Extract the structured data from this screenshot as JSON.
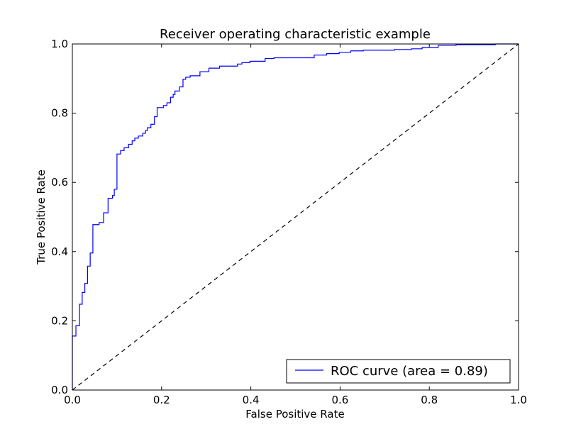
{
  "chart_data": {
    "type": "line",
    "title": "Receiver operating characteristic example",
    "xlabel": "False Positive Rate",
    "ylabel": "True Positive Rate",
    "xlim": [
      0.0,
      1.0
    ],
    "ylim": [
      0.0,
      1.0
    ],
    "xticks": [
      "0.0",
      "0.2",
      "0.4",
      "0.6",
      "0.8",
      "1.0"
    ],
    "yticks": [
      "0.0",
      "0.2",
      "0.4",
      "0.6",
      "0.8",
      "1.0"
    ],
    "grid": false,
    "legend_position": "lower-right",
    "series": [
      {
        "name": "ROC curve (area = 0.89)",
        "color": "#0000ff",
        "style": "solid",
        "step": true,
        "x": [
          0.0,
          0.0,
          0.008,
          0.008,
          0.016,
          0.016,
          0.022,
          0.022,
          0.028,
          0.028,
          0.034,
          0.034,
          0.04,
          0.04,
          0.046,
          0.046,
          0.06,
          0.06,
          0.07,
          0.07,
          0.08,
          0.08,
          0.09,
          0.09,
          0.094,
          0.094,
          0.1,
          0.1,
          0.108,
          0.108,
          0.116,
          0.116,
          0.126,
          0.126,
          0.134,
          0.134,
          0.14,
          0.14,
          0.148,
          0.148,
          0.158,
          0.158,
          0.164,
          0.164,
          0.168,
          0.168,
          0.176,
          0.176,
          0.184,
          0.184,
          0.19,
          0.19,
          0.204,
          0.204,
          0.212,
          0.212,
          0.22,
          0.22,
          0.226,
          0.226,
          0.23,
          0.23,
          0.24,
          0.24,
          0.248,
          0.248,
          0.254,
          0.254,
          0.264,
          0.264,
          0.286,
          0.286,
          0.306,
          0.306,
          0.33,
          0.33,
          0.37,
          0.37,
          0.38,
          0.38,
          0.398,
          0.398,
          0.432,
          0.432,
          0.452,
          0.452,
          0.542,
          0.542,
          0.57,
          0.57,
          0.598,
          0.598,
          0.624,
          0.624,
          0.652,
          0.652,
          0.722,
          0.722,
          0.76,
          0.76,
          0.784,
          0.784,
          0.82,
          0.82,
          0.86,
          0.86,
          0.948,
          0.948,
          1.0
        ],
        "y": [
          0.0,
          0.156,
          0.156,
          0.186,
          0.186,
          0.248,
          0.248,
          0.282,
          0.282,
          0.308,
          0.308,
          0.358,
          0.358,
          0.396,
          0.396,
          0.478,
          0.478,
          0.484,
          0.484,
          0.512,
          0.512,
          0.554,
          0.554,
          0.562,
          0.562,
          0.58,
          0.58,
          0.682,
          0.682,
          0.692,
          0.692,
          0.7,
          0.7,
          0.71,
          0.71,
          0.72,
          0.72,
          0.728,
          0.728,
          0.734,
          0.734,
          0.742,
          0.742,
          0.75,
          0.75,
          0.758,
          0.758,
          0.768,
          0.768,
          0.79,
          0.79,
          0.816,
          0.816,
          0.822,
          0.822,
          0.83,
          0.83,
          0.846,
          0.846,
          0.854,
          0.854,
          0.864,
          0.864,
          0.876,
          0.876,
          0.898,
          0.898,
          0.904,
          0.904,
          0.908,
          0.908,
          0.92,
          0.92,
          0.93,
          0.93,
          0.936,
          0.936,
          0.942,
          0.942,
          0.946,
          0.946,
          0.95,
          0.95,
          0.958,
          0.958,
          0.96,
          0.96,
          0.968,
          0.968,
          0.972,
          0.972,
          0.976,
          0.976,
          0.98,
          0.98,
          0.982,
          0.982,
          0.984,
          0.984,
          0.986,
          0.986,
          0.99,
          0.99,
          0.996,
          0.996,
          0.998,
          0.998,
          1.0,
          1.0
        ]
      },
      {
        "color": "#000000",
        "style": "dashed",
        "x": [
          0.0,
          1.0
        ],
        "y": [
          0.0,
          1.0
        ]
      }
    ],
    "legend": [
      {
        "label": "ROC curve (area = 0.89)",
        "color": "#0000ff"
      }
    ]
  }
}
